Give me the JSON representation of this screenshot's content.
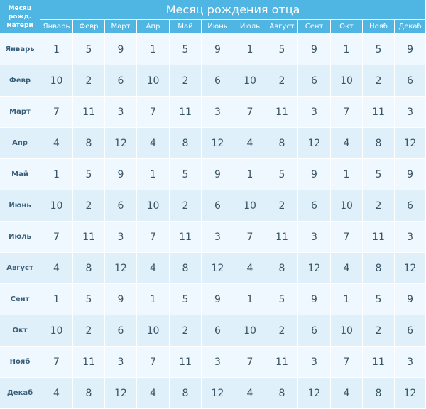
{
  "corner": {
    "line1": "Месяц",
    "line2": "рожд.",
    "line3": "матери"
  },
  "title": "Месяц рождения отца",
  "columns": [
    "Январь",
    "Февр",
    "Март",
    "Апр",
    "Май",
    "Июнь",
    "Июль",
    "Август",
    "Сент",
    "Окт",
    "Нояб",
    "Декаб"
  ],
  "rows": [
    {
      "label": "Январь",
      "values": [
        "1",
        "5",
        "9",
        "1",
        "5",
        "9",
        "1",
        "5",
        "9",
        "1",
        "5",
        "9"
      ]
    },
    {
      "label": "Февр",
      "values": [
        "10",
        "2",
        "6",
        "10",
        "2",
        "6",
        "10",
        "2",
        "6",
        "10",
        "2",
        "6"
      ]
    },
    {
      "label": "Март",
      "values": [
        "7",
        "11",
        "3",
        "7",
        "11",
        "3",
        "7",
        "11",
        "3",
        "7",
        "11",
        "3"
      ]
    },
    {
      "label": "Апр",
      "values": [
        "4",
        "8",
        "12",
        "4",
        "8",
        "12",
        "4",
        "8",
        "12",
        "4",
        "8",
        "12"
      ]
    },
    {
      "label": "Май",
      "values": [
        "1",
        "5",
        "9",
        "1",
        "5",
        "9",
        "1",
        "5",
        "9",
        "1",
        "5",
        "9"
      ]
    },
    {
      "label": "Июнь",
      "values": [
        "10",
        "2",
        "6",
        "10",
        "2",
        "6",
        "10",
        "2",
        "6",
        "10",
        "2",
        "6"
      ]
    },
    {
      "label": "Июль",
      "values": [
        "7",
        "11",
        "3",
        "7",
        "11",
        "3",
        "7",
        "11",
        "3",
        "7",
        "11",
        "3"
      ]
    },
    {
      "label": "Август",
      "values": [
        "4",
        "8",
        "12",
        "4",
        "8",
        "12",
        "4",
        "8",
        "12",
        "4",
        "8",
        "12"
      ]
    },
    {
      "label": "Сент",
      "values": [
        "1",
        "5",
        "9",
        "1",
        "5",
        "9",
        "1",
        "5",
        "9",
        "1",
        "5",
        "9"
      ]
    },
    {
      "label": "Окт",
      "values": [
        "10",
        "2",
        "6",
        "10",
        "2",
        "6",
        "10",
        "2",
        "6",
        "10",
        "2",
        "6"
      ]
    },
    {
      "label": "Нояб",
      "values": [
        "7",
        "11",
        "3",
        "7",
        "11",
        "3",
        "7",
        "11",
        "3",
        "7",
        "11",
        "3"
      ]
    },
    {
      "label": "Декаб",
      "values": [
        "4",
        "8",
        "12",
        "4",
        "8",
        "12",
        "4",
        "8",
        "12",
        "4",
        "8",
        "12"
      ]
    }
  ]
}
